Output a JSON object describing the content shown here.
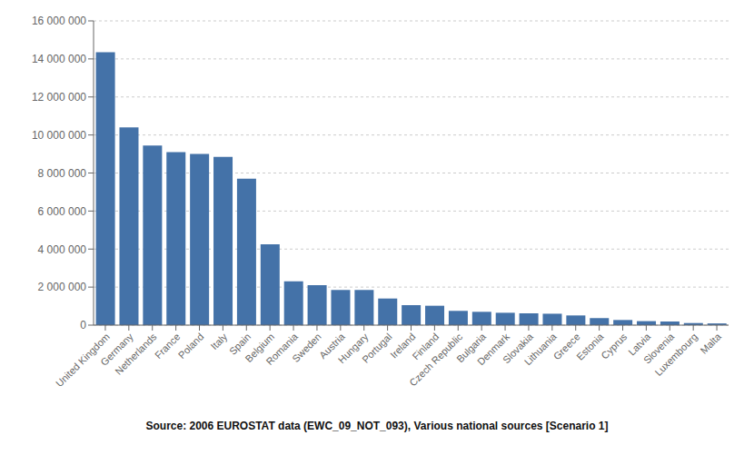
{
  "chart_data": {
    "type": "bar",
    "categories": [
      "United Kingdom",
      "Germany",
      "Netherlands",
      "France",
      "Poland",
      "Italy",
      "Spain",
      "Belgium",
      "Romania",
      "Sweden",
      "Austria",
      "Hungary",
      "Portugal",
      "Ireland",
      "Finland",
      "Czech Republic",
      "Bulgaria",
      "Denmark",
      "Slovakia",
      "Lithuania",
      "Greece",
      "Estonia",
      "Cyprus",
      "Latvia",
      "Slovenia",
      "Luxembourg",
      "Malta"
    ],
    "values": [
      14350000,
      10400000,
      9450000,
      9100000,
      9000000,
      8850000,
      7700000,
      4250000,
      2300000,
      2100000,
      1850000,
      1850000,
      1400000,
      1050000,
      1020000,
      750000,
      700000,
      650000,
      620000,
      600000,
      510000,
      370000,
      270000,
      210000,
      190000,
      110000,
      90000
    ],
    "color": "#4472a8",
    "ylim": [
      0,
      16000000
    ],
    "yticks": [
      0,
      {
        "value": 2000000,
        "label": "2 000 000"
      },
      {
        "value": 4000000,
        "label": "4 000 000"
      },
      {
        "value": 6000000,
        "label": "6 000 000"
      },
      {
        "value": 8000000,
        "label": "8 000 000"
      },
      {
        "value": 10000000,
        "label": "10 000 000"
      },
      {
        "value": 12000000,
        "label": "12 000 000"
      },
      {
        "value": 14000000,
        "label": "14 000 000"
      },
      {
        "value": 16000000,
        "label": "16 000 000"
      }
    ],
    "grid": true,
    "annotations": [
      "Source: 2006 EUROSTAT data (EWC_09_NOT_093), Various national sources [Scenario 1]"
    ]
  }
}
